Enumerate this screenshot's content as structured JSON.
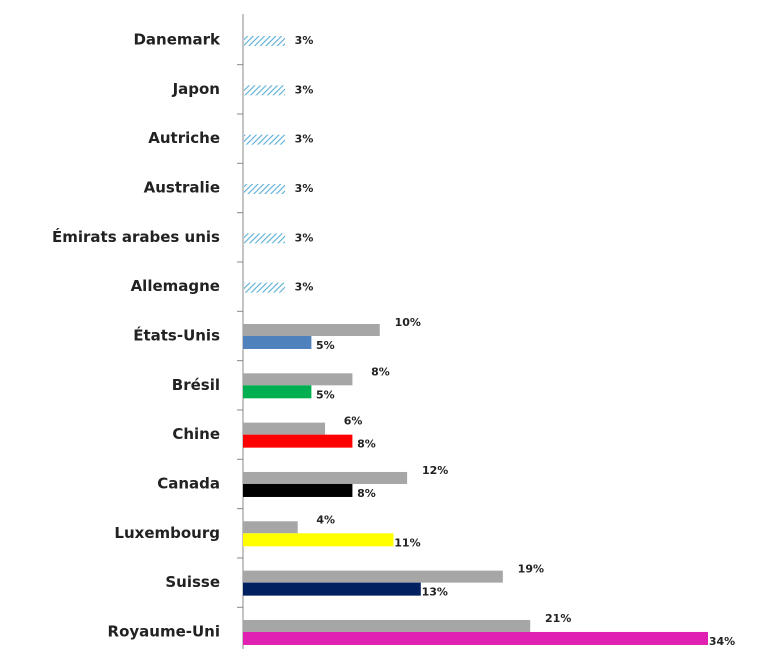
{
  "chart_data": {
    "type": "bar",
    "orientation": "horizontal",
    "categories": [
      "Danemark",
      "Japon",
      "Autriche",
      "Australie",
      "Émirats arabes unis",
      "Allemagne",
      "États-Unis",
      "Brésil",
      "Chine",
      "Canada",
      "Luxembourg",
      "Suisse",
      "Royaume-Uni"
    ],
    "series": [
      {
        "color": "#a6a6a6",
        "values": [
          null,
          null,
          null,
          null,
          null,
          null,
          10,
          8,
          6,
          12,
          4,
          19,
          21
        ],
        "value_labels": [
          null,
          null,
          null,
          null,
          null,
          null,
          "10%",
          "8%",
          "6%",
          "12%",
          "4%",
          "19%",
          "21%"
        ]
      },
      {
        "colors": [
          "#5aaed6",
          "#5aaed6",
          "#5aaed6",
          "#5aaed6",
          "#5aaed6",
          "#5aaed6",
          "#4f81bd",
          "#00b050",
          "#ff0000",
          "#000000",
          "#ffff00",
          "#002060",
          "#e020b0"
        ],
        "hatch": [
          true,
          true,
          true,
          true,
          true,
          true,
          false,
          false,
          false,
          false,
          false,
          false,
          false
        ],
        "values": [
          3,
          3,
          3,
          3,
          3,
          3,
          5,
          5,
          8,
          8,
          11,
          13,
          34
        ],
        "value_labels": [
          "3%",
          "3%",
          "3%",
          "3%",
          "3%",
          "3%",
          "5%",
          "5%",
          "8%",
          "8%",
          "11%",
          "13%",
          "34%"
        ]
      }
    ]
  }
}
